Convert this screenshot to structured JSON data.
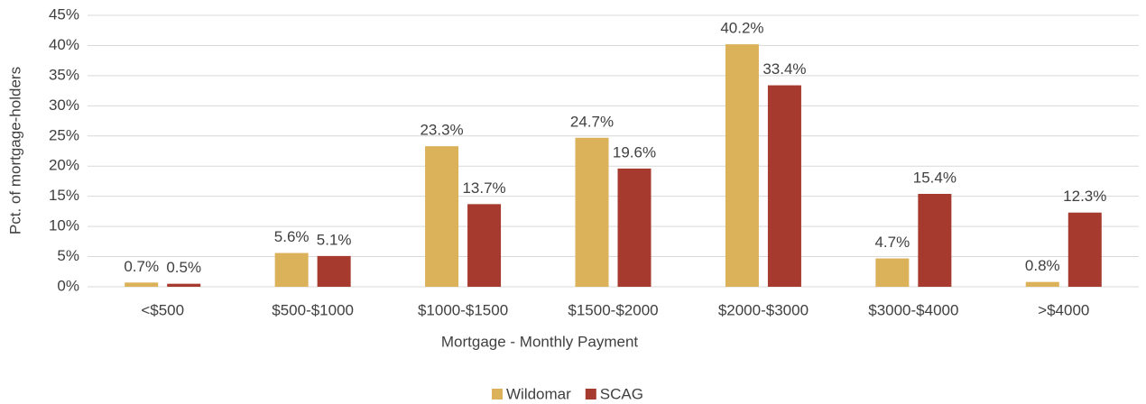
{
  "chart_data": {
    "type": "bar",
    "x_label": "Mortgage - Monthly Payment",
    "y_label": "Pct. of mortgage-holders",
    "categories": [
      "<$500",
      "$500-$1000",
      "$1000-$1500",
      "$1500-$2000",
      "$2000-$3000",
      "$3000-$4000",
      ">$4000"
    ],
    "series": [
      {
        "name": "Wildomar",
        "color": "#dbb15a",
        "values": [
          0.7,
          5.6,
          23.3,
          24.7,
          40.2,
          4.7,
          0.8
        ],
        "value_labels": [
          "0.7%",
          "5.6%",
          "23.3%",
          "24.7%",
          "40.2%",
          "4.7%",
          "0.8%"
        ]
      },
      {
        "name": "SCAG",
        "color": "#a63a2f",
        "values": [
          0.5,
          5.1,
          13.7,
          19.6,
          33.4,
          15.4,
          12.3
        ],
        "value_labels": [
          "0.5%",
          "5.1%",
          "13.7%",
          "19.6%",
          "33.4%",
          "15.4%",
          "12.3%"
        ]
      }
    ],
    "ylim": [
      0,
      45
    ],
    "yticks": [
      {
        "value": 0,
        "label": "0%"
      },
      {
        "value": 5,
        "label": "5%"
      },
      {
        "value": 10,
        "label": "10%"
      },
      {
        "value": 15,
        "label": "15%"
      },
      {
        "value": 20,
        "label": "20%"
      },
      {
        "value": 25,
        "label": "25%"
      },
      {
        "value": 30,
        "label": "30%"
      },
      {
        "value": 35,
        "label": "35%"
      },
      {
        "value": 40,
        "label": "40%"
      },
      {
        "value": 45,
        "label": "45%"
      }
    ],
    "grid": true,
    "legend": "bottom"
  }
}
